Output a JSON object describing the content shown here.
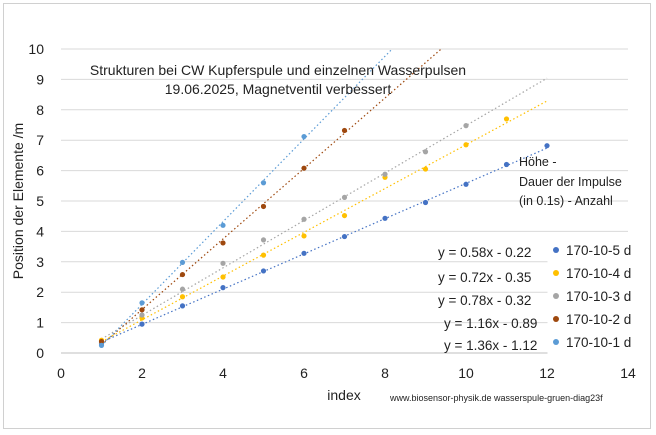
{
  "chart_data": {
    "type": "scatter",
    "title_lines": [
      "Strukturen bei CW Kupferspule und einzelnen Wasserpulsen",
      "19.06.2025, Magnetventil verbessert"
    ],
    "xlabel": "index",
    "ylabel": "Position der Elemente /m",
    "xlim": [
      0,
      14
    ],
    "ylim": [
      0,
      10
    ],
    "x_ticks": [
      "0",
      "2",
      "4",
      "6",
      "8",
      "10",
      "12",
      "14"
    ],
    "y_ticks": [
      "0",
      "1",
      "2",
      "3",
      "4",
      "5",
      "6",
      "7",
      "8",
      "9",
      "10"
    ],
    "grid": "horizontal",
    "legend_position": "bottom-right",
    "series": [
      {
        "name": "170-10-5 d",
        "color": "#4472c4",
        "x": [
          1,
          2,
          3,
          4,
          5,
          6,
          7,
          8,
          9,
          10,
          11,
          12
        ],
        "y": [
          0.3,
          0.95,
          1.55,
          2.15,
          2.7,
          3.28,
          3.83,
          4.43,
          4.95,
          5.55,
          6.2,
          6.82
        ],
        "trendline": {
          "slope": 0.58,
          "intercept": -0.22
        }
      },
      {
        "name": "170-10-4 d",
        "color": "#ffc000",
        "x": [
          1,
          2,
          3,
          4,
          5,
          6,
          7,
          8,
          9,
          10,
          11
        ],
        "y": [
          0.42,
          1.15,
          1.85,
          2.5,
          3.22,
          3.85,
          4.52,
          5.78,
          6.05,
          6.85,
          7.7
        ],
        "trendline": {
          "slope": 0.72,
          "intercept": -0.35
        }
      },
      {
        "name": "170-10-3 d",
        "color": "#a5a5a5",
        "x": [
          1,
          2,
          3,
          4,
          5,
          6,
          7,
          8,
          9,
          10
        ],
        "y": [
          0.35,
          1.25,
          2.1,
          2.95,
          3.72,
          4.4,
          5.12,
          5.88,
          6.62,
          7.48
        ],
        "trendline": {
          "slope": 0.78,
          "intercept": -0.32
        }
      },
      {
        "name": "170-10-2 d",
        "color": "#9e480e",
        "x": [
          1,
          2,
          3,
          4,
          5,
          6,
          7
        ],
        "y": [
          0.38,
          1.42,
          2.58,
          3.62,
          4.82,
          6.08,
          7.32
        ],
        "trendline": {
          "slope": 1.16,
          "intercept": -0.89
        }
      },
      {
        "name": "170-10-1 d",
        "color": "#5b9bd5",
        "x": [
          1,
          2,
          3,
          4,
          5,
          6
        ],
        "y": [
          0.25,
          1.65,
          2.98,
          4.2,
          5.6,
          7.12
        ],
        "trendline": {
          "slope": 1.36,
          "intercept": -1.12
        }
      }
    ],
    "equations": [
      "y = 0.58x - 0.22",
      "y = 0.72x - 0.35",
      "y = 0.78x - 0.32",
      "y = 1.16x - 0.89",
      "y = 1.36x - 1.12"
    ],
    "annotation_lines": [
      "Höhe -",
      "Dauer der Impulse",
      "(in 0.1s) -  Anzahl"
    ],
    "credit": "www.biosensor-physik.de  wasserspule-gruen-diag23f"
  }
}
